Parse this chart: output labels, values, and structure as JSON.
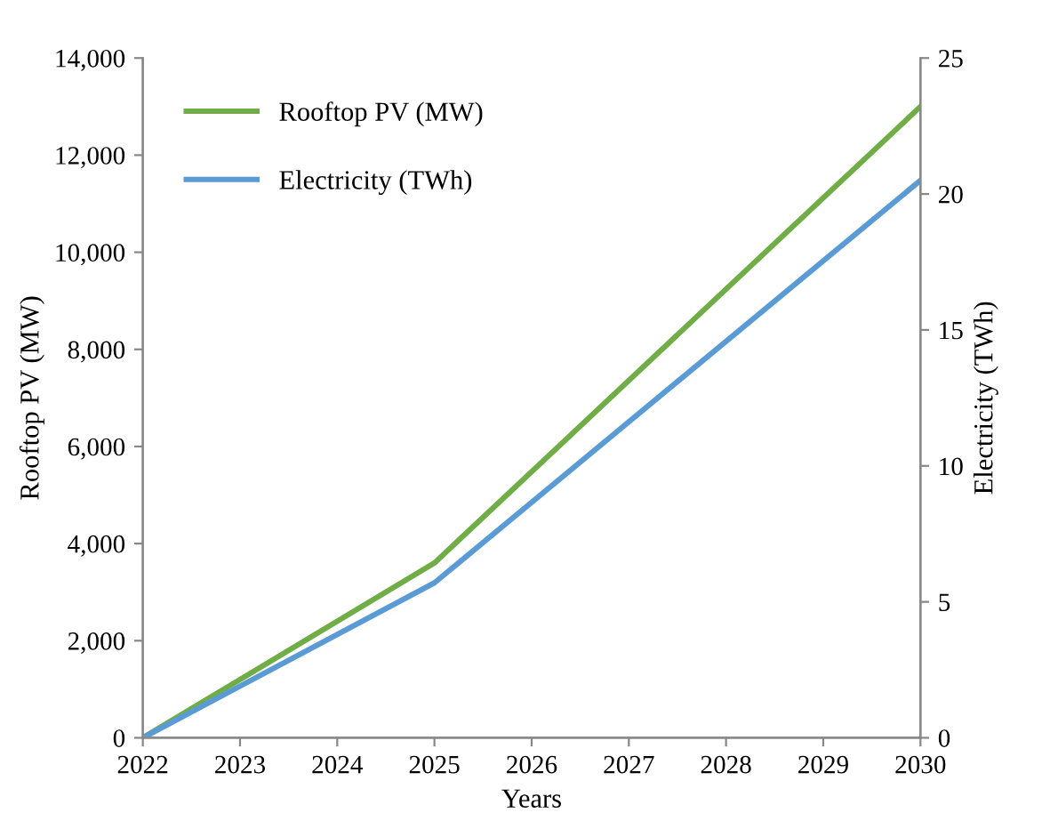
{
  "chart_data": {
    "type": "line",
    "xlabel": "Years",
    "ylabel": "Rooftop PV (MW)",
    "y2label": "Electricity (TWh)",
    "x": [
      2022,
      2025,
      2030
    ],
    "series": [
      {
        "name": "Rooftop PV (MW)",
        "color": "#70ad47",
        "values": [
          0,
          3600,
          13000
        ]
      },
      {
        "name": "Electricity (TWh)",
        "color": "#5b9bd5",
        "values": [
          0,
          5.7,
          20.5
        ],
        "axis": "y2"
      }
    ],
    "xlim": [
      2022,
      2030
    ],
    "xticks": [
      2022,
      2023,
      2024,
      2025,
      2026,
      2027,
      2028,
      2029,
      2030
    ],
    "ylim": [
      0,
      14000
    ],
    "yticks": [
      {
        "value": 0,
        "label": "0"
      },
      {
        "value": 2000,
        "label": "2,000"
      },
      {
        "value": 4000,
        "label": "4,000"
      },
      {
        "value": 6000,
        "label": "6,000"
      },
      {
        "value": 8000,
        "label": "8,000"
      },
      {
        "value": 10000,
        "label": "10,000"
      },
      {
        "value": 12000,
        "label": "12,000"
      },
      {
        "value": 14000,
        "label": "14,000"
      }
    ],
    "y2lim": [
      0,
      25
    ],
    "y2ticks": [
      0,
      5,
      10,
      15,
      20,
      25
    ],
    "legend": "top left",
    "grid": false,
    "marker": "none",
    "line_style": "solid"
  }
}
